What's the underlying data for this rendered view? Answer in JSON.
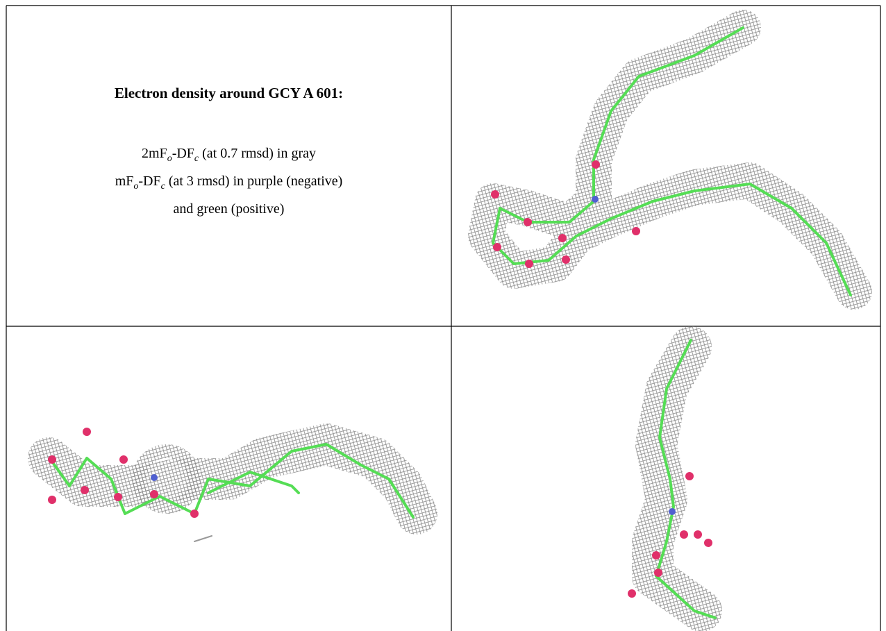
{
  "title": "Electron density around GCY A 601:",
  "legend": [
    [
      "2mF",
      "o",
      "-DF",
      "c",
      " (at 0.7 rmsd) in gray"
    ],
    [
      "mF",
      "o",
      "-DF",
      "c",
      " (at 3 rmsd) in purple (negative)"
    ],
    [
      "and green (positive)"
    ]
  ]
}
